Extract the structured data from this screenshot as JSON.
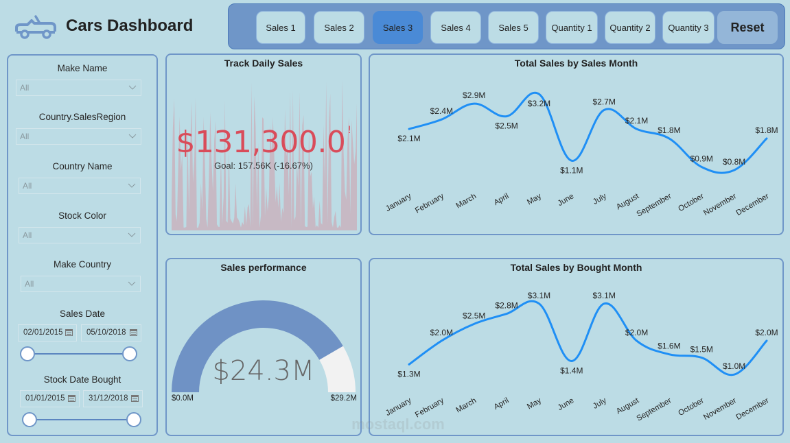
{
  "header": {
    "title": "Cars Dashboard",
    "logo_icon": "car-convertible-icon"
  },
  "nav": {
    "buttons": [
      {
        "label": "Sales 1",
        "active": false
      },
      {
        "label": "Sales 2",
        "active": false
      },
      {
        "label": "Sales 3",
        "active": true
      },
      {
        "label": "Sales 4",
        "active": false
      },
      {
        "label": "Sales 5",
        "active": false
      },
      {
        "label": "Quantity 1",
        "active": false
      },
      {
        "label": "Quantity 2",
        "active": false
      },
      {
        "label": "Quantity 3",
        "active": false
      }
    ],
    "reset_label": "Reset"
  },
  "filters": {
    "make_name": {
      "label": "Make Name",
      "value": "All"
    },
    "sales_region": {
      "label": "Country.SalesRegion",
      "value": "All"
    },
    "country_name": {
      "label": "Country Name",
      "value": "All"
    },
    "stock_color": {
      "label": "Stock Color",
      "value": "All"
    },
    "make_country": {
      "label": "Make Country",
      "value": "All"
    },
    "sales_date": {
      "label": "Sales Date",
      "start": "02/01/2015",
      "end": "05/10/2018"
    },
    "stock_date_bought": {
      "label": "Stock Date Bought",
      "start": "01/01/2015",
      "end": "31/12/2018"
    }
  },
  "kpi": {
    "title": "Track Daily Sales",
    "value": "$131,300.0",
    "status_mark": "!",
    "goal_text": "Goal: 157.56K (-16.67%)",
    "colors": {
      "value": "#d94c5a",
      "trend_fill": "#c9b3be"
    }
  },
  "gauge": {
    "title": "Sales performance",
    "value_label": "$24.3M",
    "min_label": "$0.0M",
    "max_label": "$29.2M",
    "value": 24.3,
    "min": 0,
    "max": 29.2,
    "colors": {
      "fill": "#6f92c5",
      "rest": "#f2f2f2"
    }
  },
  "chart_data": [
    {
      "type": "line",
      "title": "Total Sales by Sales Month",
      "categories": [
        "January",
        "February",
        "March",
        "April",
        "May",
        "June",
        "July",
        "August",
        "September",
        "October",
        "November",
        "December"
      ],
      "values": [
        2.1,
        2.4,
        2.9,
        2.5,
        3.2,
        1.1,
        2.7,
        2.1,
        1.8,
        0.9,
        0.8,
        1.8
      ],
      "data_labels": [
        "$2.1M",
        "$2.4M",
        "$2.9M",
        "$2.5M",
        "$3.2M",
        "$1.1M",
        "$2.7M",
        "$2.1M",
        "$1.8M",
        "$0.9M",
        "$0.8M",
        "$1.8M"
      ],
      "label_pos": [
        "below",
        "above",
        "above",
        "below",
        "below",
        "below",
        "above",
        "above",
        "above",
        "above",
        "above",
        "above"
      ],
      "xlabel": "",
      "ylabel": "",
      "ylim": [
        0.5,
        3.4
      ],
      "grid": false,
      "legend": "none",
      "color": "#1f8ff5"
    },
    {
      "type": "line",
      "title": "Total Sales by Bought Month",
      "categories": [
        "January",
        "February",
        "March",
        "April",
        "May",
        "June",
        "July",
        "August",
        "September",
        "October",
        "November",
        "December"
      ],
      "values": [
        1.3,
        2.0,
        2.5,
        2.8,
        3.1,
        1.4,
        3.1,
        2.0,
        1.6,
        1.5,
        1.0,
        2.0
      ],
      "data_labels": [
        "$1.3M",
        "$2.0M",
        "$2.5M",
        "$2.8M",
        "$3.1M",
        "$1.4M",
        "$3.1M",
        "$2.0M",
        "$1.6M",
        "$1.5M",
        "$1.0M",
        "$2.0M"
      ],
      "label_pos": [
        "below",
        "above",
        "above",
        "above",
        "above",
        "below",
        "above",
        "above",
        "above",
        "above",
        "above",
        "above"
      ],
      "xlabel": "",
      "ylabel": "",
      "ylim": [
        0.8,
        3.3
      ],
      "grid": false,
      "legend": "none",
      "color": "#1f8ff5"
    }
  ],
  "watermark": {
    "text": "mostaql.com"
  }
}
